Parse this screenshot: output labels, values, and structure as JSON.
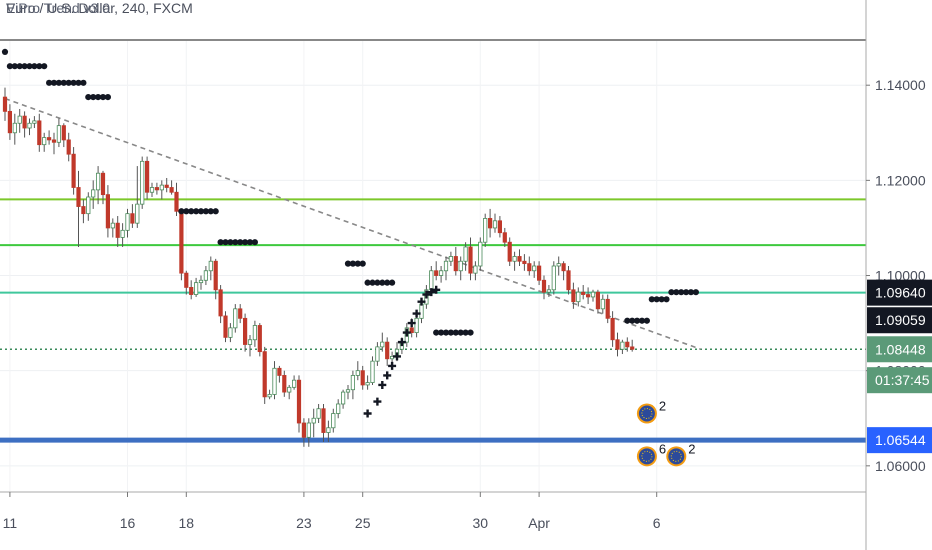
{
  "header": {
    "title": "Euro / U.S. Dollar, 240, FXCM",
    "indicator": "ViPro Trend v3.0"
  },
  "colors": {
    "bear": "#c0392b",
    "bull": "#ffffff",
    "wick": "#555555",
    "dots": "#131722",
    "blue_level": "#3d6fc2",
    "green_level_1": "#7cc82a",
    "green_level_2": "#3ec93e",
    "green_level_3": "#3fc79c",
    "trend": "#888888",
    "tag_dark": "#131722",
    "tag_green": "#5b9a78",
    "tag_blue": "#2962ff"
  },
  "chart_data": {
    "type": "candlestick",
    "title": "Euro / U.S. Dollar, 240, FXCM",
    "ylim": [
      1.0545,
      1.1495
    ],
    "y_ticks": [
      1.06,
      1.08,
      1.1,
      1.12,
      1.14
    ],
    "y_tick_labels": [
      "1.06000",
      "1.08000",
      "1.10000",
      "1.12000",
      "1.14000"
    ],
    "x_tick_labels": [
      {
        "label": "11",
        "bar": 1
      },
      {
        "label": "16",
        "bar": 25
      },
      {
        "label": "18",
        "bar": 37
      },
      {
        "label": "23",
        "bar": 61
      },
      {
        "label": "25",
        "bar": 73
      },
      {
        "label": "30",
        "bar": 97
      },
      {
        "label": "Apr",
        "bar": 109
      },
      {
        "label": "6",
        "bar": 133
      }
    ],
    "levels": [
      {
        "value": 1.116,
        "color_key": "green_level_1"
      },
      {
        "value": 1.1064,
        "color_key": "green_level_2"
      },
      {
        "value": 1.0964,
        "color_key": "green_level_3"
      },
      {
        "value": 1.0654,
        "color_key": "blue_level"
      }
    ],
    "trendline": {
      "from": {
        "bar": 0,
        "value": 1.1372
      },
      "to": {
        "bar": 142,
        "value": 1.0845
      }
    },
    "price_tags": [
      {
        "label": "1.09640",
        "value": 1.0964,
        "style": "dark"
      },
      {
        "label": "1.09059",
        "value": 1.0906,
        "style": "dark"
      },
      {
        "label": "1.08448",
        "value": 1.0845,
        "style": "green"
      },
      {
        "label": "01:37:45",
        "value": 1.078,
        "style": "green"
      },
      {
        "label": "1.06544",
        "value": 1.0654,
        "style": "blue"
      }
    ],
    "event_badges": [
      {
        "count": "2",
        "bar": 131,
        "value": 1.071
      },
      {
        "count": "6",
        "bar": 131,
        "value": 1.062
      },
      {
        "count": "2",
        "bar": 137,
        "value": 1.062
      }
    ],
    "ohlc": [
      [
        1.1375,
        1.1395,
        1.1325,
        1.1345
      ],
      [
        1.1345,
        1.136,
        1.1285,
        1.13
      ],
      [
        1.13,
        1.134,
        1.1275,
        1.132
      ],
      [
        1.132,
        1.135,
        1.13,
        1.1335
      ],
      [
        1.1335,
        1.1345,
        1.129,
        1.131
      ],
      [
        1.131,
        1.133,
        1.1295,
        1.132
      ],
      [
        1.132,
        1.1335,
        1.131,
        1.1325
      ],
      [
        1.1325,
        1.134,
        1.126,
        1.1275
      ],
      [
        1.1275,
        1.13,
        1.126,
        1.129
      ],
      [
        1.129,
        1.1305,
        1.1275,
        1.1285
      ],
      [
        1.1285,
        1.13,
        1.1255,
        1.128
      ],
      [
        1.128,
        1.133,
        1.127,
        1.1315
      ],
      [
        1.1315,
        1.132,
        1.127,
        1.1285
      ],
      [
        1.1285,
        1.13,
        1.124,
        1.1255
      ],
      [
        1.1255,
        1.127,
        1.117,
        1.1185
      ],
      [
        1.1185,
        1.122,
        1.106,
        1.1145
      ],
      [
        1.1145,
        1.116,
        1.111,
        1.113
      ],
      [
        1.113,
        1.1175,
        1.1115,
        1.1165
      ],
      [
        1.1165,
        1.12,
        1.114,
        1.118
      ],
      [
        1.118,
        1.123,
        1.115,
        1.1215
      ],
      [
        1.1215,
        1.122,
        1.115,
        1.117
      ],
      [
        1.117,
        1.119,
        1.108,
        1.11
      ],
      [
        1.11,
        1.112,
        1.108,
        1.111
      ],
      [
        1.111,
        1.1125,
        1.106,
        1.108
      ],
      [
        1.108,
        1.111,
        1.106,
        1.1095
      ],
      [
        1.1095,
        1.114,
        1.108,
        1.113
      ],
      [
        1.113,
        1.115,
        1.11,
        1.111
      ],
      [
        1.111,
        1.123,
        1.11,
        1.115
      ],
      [
        1.115,
        1.125,
        1.114,
        1.124
      ],
      [
        1.124,
        1.125,
        1.116,
        1.1175
      ],
      [
        1.1175,
        1.1195,
        1.1165,
        1.1185
      ],
      [
        1.1185,
        1.1195,
        1.117,
        1.118
      ],
      [
        1.118,
        1.12,
        1.116,
        1.119
      ],
      [
        1.119,
        1.1205,
        1.1175,
        1.1185
      ],
      [
        1.1185,
        1.12,
        1.117,
        1.1175
      ],
      [
        1.1175,
        1.1195,
        1.1125,
        1.1135
      ],
      [
        1.1135,
        1.114,
        1.099,
        1.1005
      ],
      [
        1.1005,
        1.101,
        1.096,
        1.0975
      ],
      [
        1.0975,
        1.099,
        1.095,
        1.096
      ],
      [
        1.096,
        1.0995,
        1.0955,
        1.0985
      ],
      [
        1.0985,
        1.1,
        1.097,
        1.099
      ],
      [
        1.099,
        1.102,
        1.098,
        1.101
      ],
      [
        1.101,
        1.104,
        1.099,
        1.103
      ],
      [
        1.103,
        1.1035,
        1.095,
        1.097
      ],
      [
        1.097,
        1.098,
        1.09,
        1.0915
      ],
      [
        1.0915,
        1.0925,
        1.086,
        1.087
      ],
      [
        1.087,
        1.09,
        1.086,
        1.089
      ],
      [
        1.089,
        1.094,
        1.088,
        1.093
      ],
      [
        1.093,
        1.094,
        1.09,
        1.091
      ],
      [
        1.091,
        1.092,
        1.084,
        1.0855
      ],
      [
        1.0855,
        1.0875,
        1.083,
        1.0865
      ],
      [
        1.0865,
        1.0905,
        1.085,
        1.0895
      ],
      [
        1.0895,
        1.09,
        1.083,
        1.084
      ],
      [
        1.084,
        1.085,
        1.073,
        1.0745
      ],
      [
        1.0745,
        1.076,
        1.074,
        1.075
      ],
      [
        1.075,
        1.082,
        1.074,
        1.0805
      ],
      [
        1.0805,
        1.081,
        1.0775,
        1.079
      ],
      [
        1.079,
        1.08,
        1.0745,
        1.0755
      ],
      [
        1.0755,
        1.077,
        1.074,
        1.0765
      ],
      [
        1.0765,
        1.079,
        1.076,
        1.078
      ],
      [
        1.078,
        1.079,
        1.067,
        1.069
      ],
      [
        1.069,
        1.07,
        1.064,
        1.066
      ],
      [
        1.066,
        1.07,
        1.064,
        1.069
      ],
      [
        1.069,
        1.072,
        1.066,
        1.07
      ],
      [
        1.07,
        1.073,
        1.069,
        1.072
      ],
      [
        1.072,
        1.073,
        1.065,
        1.067
      ],
      [
        1.067,
        1.0695,
        1.065,
        1.068
      ],
      [
        1.068,
        1.072,
        1.067,
        1.071
      ],
      [
        1.071,
        1.074,
        1.07,
        1.073
      ],
      [
        1.073,
        1.076,
        1.072,
        1.0755
      ],
      [
        1.0755,
        1.077,
        1.074,
        1.076
      ],
      [
        1.076,
        1.08,
        1.074,
        1.079
      ],
      [
        1.079,
        1.082,
        1.078,
        1.08
      ],
      [
        1.08,
        1.081,
        1.076,
        1.077
      ],
      [
        1.077,
        1.079,
        1.076,
        1.0775
      ],
      [
        1.0775,
        1.083,
        1.077,
        1.082
      ],
      [
        1.082,
        1.086,
        1.081,
        1.085
      ],
      [
        1.085,
        1.088,
        1.084,
        1.086
      ],
      [
        1.086,
        1.087,
        1.081,
        1.0825
      ],
      [
        1.0825,
        1.084,
        1.0815,
        1.083
      ],
      [
        1.083,
        1.086,
        1.082,
        1.0845
      ],
      [
        1.0845,
        1.087,
        1.0835,
        1.086
      ],
      [
        1.086,
        1.09,
        1.085,
        1.089
      ],
      [
        1.089,
        1.091,
        1.087,
        1.088
      ],
      [
        1.088,
        1.092,
        1.087,
        1.091
      ],
      [
        1.091,
        1.095,
        1.09,
        1.094
      ],
      [
        1.094,
        1.098,
        1.093,
        1.097
      ],
      [
        1.097,
        1.102,
        1.096,
        1.101
      ],
      [
        1.101,
        1.103,
        1.099,
        1.1
      ],
      [
        1.1,
        1.102,
        1.0985,
        1.101
      ],
      [
        1.101,
        1.104,
        1.099,
        1.103
      ],
      [
        1.103,
        1.105,
        1.102,
        1.104
      ],
      [
        1.104,
        1.106,
        1.1,
        1.101
      ],
      [
        1.101,
        1.104,
        1.099,
        1.103
      ],
      [
        1.103,
        1.107,
        1.101,
        1.106
      ],
      [
        1.106,
        1.108,
        1.099,
        1.1005
      ],
      [
        1.1005,
        1.103,
        1.099,
        1.102
      ],
      [
        1.102,
        1.108,
        1.101,
        1.107
      ],
      [
        1.107,
        1.113,
        1.106,
        1.112
      ],
      [
        1.112,
        1.114,
        1.108,
        1.11
      ],
      [
        1.11,
        1.113,
        1.109,
        1.1115
      ],
      [
        1.1115,
        1.1125,
        1.108,
        1.109
      ],
      [
        1.109,
        1.11,
        1.106,
        1.107
      ],
      [
        1.107,
        1.108,
        1.102,
        1.103
      ],
      [
        1.103,
        1.105,
        1.101,
        1.104
      ],
      [
        1.104,
        1.1055,
        1.102,
        1.103
      ],
      [
        1.103,
        1.1045,
        1.101,
        1.1025
      ],
      [
        1.1025,
        1.104,
        1.1,
        1.101
      ],
      [
        1.101,
        1.103,
        1.0995,
        1.102
      ],
      [
        1.102,
        1.103,
        1.098,
        1.099
      ],
      [
        1.099,
        1.1,
        1.095,
        1.0965
      ],
      [
        1.0965,
        1.098,
        1.0955,
        1.097
      ],
      [
        1.097,
        1.103,
        1.096,
        1.102
      ],
      [
        1.102,
        1.104,
        1.1,
        1.1025
      ],
      [
        1.1025,
        1.103,
        1.099,
        1.101
      ],
      [
        1.101,
        1.102,
        1.096,
        1.097
      ],
      [
        1.097,
        1.0985,
        1.093,
        1.0945
      ],
      [
        1.0945,
        1.0975,
        1.0935,
        1.0965
      ],
      [
        1.0965,
        1.098,
        1.095,
        1.096
      ],
      [
        1.096,
        1.0975,
        1.094,
        1.0955
      ],
      [
        1.0955,
        1.097,
        1.0945,
        1.0965
      ],
      [
        1.0965,
        1.097,
        1.092,
        1.093
      ],
      [
        1.093,
        1.096,
        1.092,
        1.095
      ],
      [
        1.095,
        1.096,
        1.09,
        1.091
      ],
      [
        1.091,
        1.0925,
        1.085,
        1.0865
      ],
      [
        1.0865,
        1.088,
        1.083,
        1.0845
      ],
      [
        1.0845,
        1.0865,
        1.0835,
        1.086
      ],
      [
        1.086,
        1.087,
        1.084,
        1.085
      ],
      [
        1.085,
        1.0865,
        1.084,
        1.0845
      ]
    ],
    "dots": [
      {
        "from": 0,
        "to": 0,
        "value": 1.147
      },
      {
        "from": 1,
        "to": 8,
        "value": 1.144
      },
      {
        "from": 9,
        "to": 16,
        "value": 1.1405
      },
      {
        "from": 17,
        "to": 21,
        "value": 1.1375
      },
      {
        "from": 36,
        "to": 43,
        "value": 1.1135
      },
      {
        "from": 44,
        "to": 51,
        "value": 1.107
      },
      {
        "from": 70,
        "to": 73,
        "value": 1.1025
      },
      {
        "from": 74,
        "to": 79,
        "value": 1.0985
      },
      {
        "from": 88,
        "to": 95,
        "value": 1.088
      },
      {
        "from": 127,
        "to": 131,
        "value": 1.0905
      },
      {
        "from": 132,
        "to": 135,
        "value": 1.095
      },
      {
        "from": 136,
        "to": 141,
        "value": 1.0965
      }
    ],
    "crosses": [
      {
        "bar": 74,
        "value": 1.071
      },
      {
        "bar": 76,
        "value": 1.0735
      },
      {
        "bar": 77,
        "value": 1.077
      },
      {
        "bar": 78,
        "value": 1.079
      },
      {
        "bar": 79,
        "value": 1.081
      },
      {
        "bar": 80,
        "value": 1.083
      },
      {
        "bar": 81,
        "value": 1.086
      },
      {
        "bar": 82,
        "value": 1.088
      },
      {
        "bar": 83,
        "value": 1.09
      },
      {
        "bar": 84,
        "value": 1.092
      },
      {
        "bar": 85,
        "value": 1.0945
      },
      {
        "bar": 86,
        "value": 1.096
      },
      {
        "bar": 87,
        "value": 1.0965
      },
      {
        "bar": 88,
        "value": 1.097
      }
    ]
  }
}
